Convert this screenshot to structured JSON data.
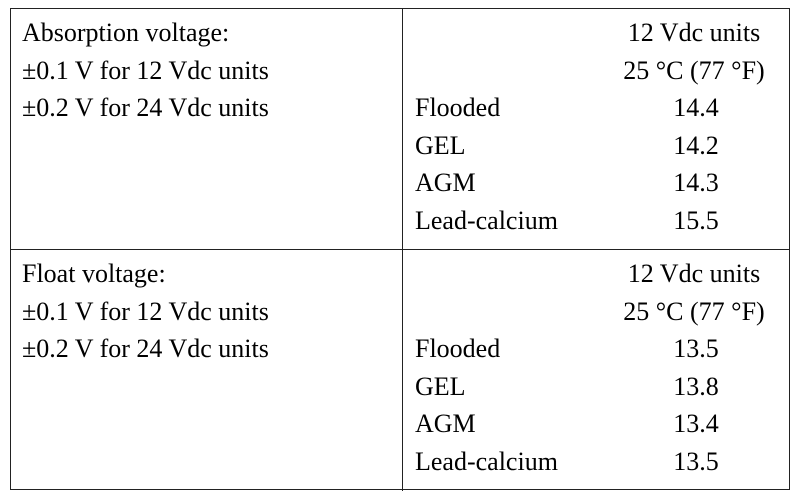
{
  "table": {
    "rows": [
      {
        "description": [
          "Absorption voltage:",
          "±0.1 V for 12 Vdc units",
          "±0.2 V for 24 Vdc units"
        ],
        "header": [
          "12 Vdc units",
          "25 °C (77 °F)"
        ],
        "entries": [
          [
            "Flooded",
            "14.4"
          ],
          [
            "GEL",
            "14.2"
          ],
          [
            "AGM",
            "14.3"
          ],
          [
            "Lead-calcium",
            "15.5"
          ]
        ]
      },
      {
        "description": [
          "Float voltage:",
          "±0.1 V for 12 Vdc units",
          "±0.2 V for 24 Vdc units"
        ],
        "header": [
          "12 Vdc units",
          "25 °C (77 °F)"
        ],
        "entries": [
          [
            "Flooded",
            "13.5"
          ],
          [
            "GEL",
            "13.8"
          ],
          [
            "AGM",
            "13.4"
          ],
          [
            "Lead-calcium",
            "13.5"
          ]
        ]
      }
    ]
  }
}
